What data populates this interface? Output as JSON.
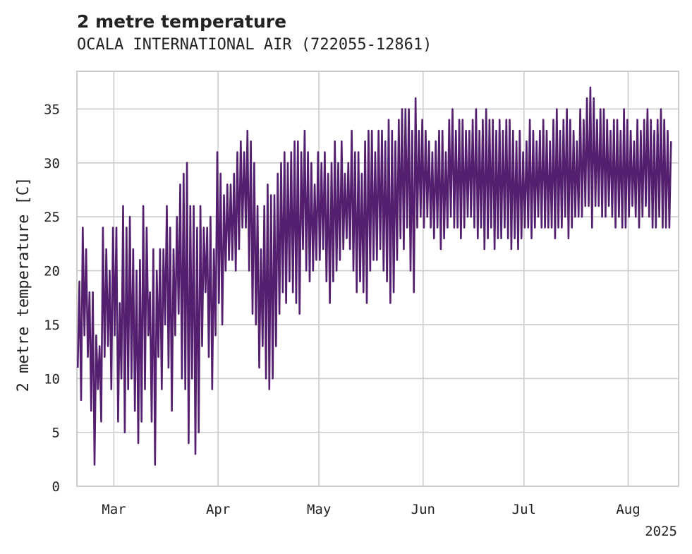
{
  "chart_data": {
    "type": "line",
    "title": "2 metre temperature",
    "subtitle": "OCALA INTERNATIONAL AIR (722055-12861)",
    "xlabel": "",
    "ylabel": "2 metre temperature [C]",
    "x_start": "2025-02-18",
    "x_end": "2025-08-16",
    "xlim": [
      "2025-02-18",
      "2025-08-16"
    ],
    "ylim": [
      0,
      38.5
    ],
    "x_ticks": [
      {
        "date": "2025-03-01",
        "label": "Mar"
      },
      {
        "date": "2025-04-01",
        "label": "Apr"
      },
      {
        "date": "2025-05-01",
        "label": "May"
      },
      {
        "date": "2025-06-01",
        "label": "Jun"
      },
      {
        "date": "2025-07-01",
        "label": "Jul"
      },
      {
        "date": "2025-08-01",
        "label": "Aug"
      }
    ],
    "x_offset_label": "2025",
    "y_ticks": [
      0,
      5,
      10,
      15,
      20,
      25,
      30,
      35
    ],
    "grid": true,
    "colors": {
      "line": "#541f6e",
      "grid": "#cccccc",
      "axes": "#cccccc"
    },
    "series": [
      {
        "name": "",
        "daily_min": [
          11,
          8,
          14,
          12,
          7,
          2,
          9,
          6,
          12,
          13,
          9,
          14,
          6,
          10,
          5,
          9,
          10,
          7,
          4,
          6,
          9,
          14,
          6,
          2,
          12,
          9,
          15,
          11,
          7,
          14,
          16,
          10,
          9,
          4,
          10,
          3,
          5,
          13,
          18,
          12,
          9,
          14,
          17,
          15,
          20,
          21,
          21,
          20,
          22,
          24,
          24,
          20,
          16,
          15,
          11,
          13,
          10,
          9,
          10,
          13,
          16,
          18,
          17,
          19,
          18,
          17,
          16,
          22,
          20,
          19,
          20,
          21,
          21,
          22,
          19,
          17,
          19,
          20,
          21,
          22,
          23,
          22,
          20,
          18,
          19,
          18,
          17,
          20,
          21,
          21,
          22,
          20,
          19,
          17,
          18,
          21,
          23,
          22,
          24,
          20,
          18,
          24,
          25,
          24,
          25,
          24,
          23,
          24,
          22,
          23,
          24,
          25,
          24,
          24,
          23,
          24,
          25,
          25,
          24,
          23,
          24,
          22,
          23,
          24,
          22,
          23,
          23,
          24,
          23,
          22,
          23,
          22,
          23,
          24,
          24,
          23,
          24,
          25,
          24,
          24,
          24,
          24,
          23,
          24,
          24,
          25,
          23,
          24,
          25,
          25,
          25,
          26,
          26,
          24,
          26,
          26,
          25,
          25,
          26,
          25,
          24,
          25,
          24,
          24,
          25,
          26,
          25,
          24,
          25,
          26,
          25,
          24,
          24,
          25,
          24,
          24,
          24
        ],
        "daily_max": [
          19,
          24,
          22,
          18,
          18,
          14,
          13,
          24,
          22,
          20,
          24,
          24,
          17,
          26,
          24,
          25,
          22,
          20,
          21,
          26,
          24,
          18,
          22,
          20,
          22,
          22,
          26,
          24,
          22,
          25,
          28,
          29,
          30,
          26,
          26,
          24,
          26,
          24,
          24,
          25,
          22,
          31,
          29,
          27,
          28,
          28,
          29,
          31,
          32,
          31,
          33,
          32,
          30,
          26,
          22,
          26,
          28,
          27,
          27,
          29,
          30,
          31,
          30,
          31,
          32,
          32,
          31,
          33,
          31,
          30,
          28,
          31,
          30,
          31,
          29,
          30,
          32,
          30,
          32,
          29,
          30,
          33,
          31,
          31,
          29,
          32,
          33,
          33,
          31,
          33,
          33,
          32,
          34,
          33,
          32,
          34,
          35,
          35,
          35,
          33,
          36,
          33,
          34,
          33,
          32,
          31,
          32,
          33,
          33,
          31,
          34,
          35,
          33,
          34,
          34,
          33,
          33,
          34,
          35,
          33,
          34,
          35,
          34,
          34,
          33,
          34,
          33,
          34,
          34,
          33,
          32,
          33,
          31,
          32,
          34,
          33,
          32,
          33,
          34,
          33,
          32,
          34,
          35,
          33,
          34,
          35,
          34,
          33,
          32,
          35,
          34,
          36,
          37,
          36,
          34,
          35,
          35,
          34,
          33,
          34,
          34,
          33,
          35,
          34,
          33,
          32,
          34,
          33,
          34,
          35,
          34,
          33,
          34,
          35,
          34,
          33,
          32
        ]
      }
    ]
  }
}
